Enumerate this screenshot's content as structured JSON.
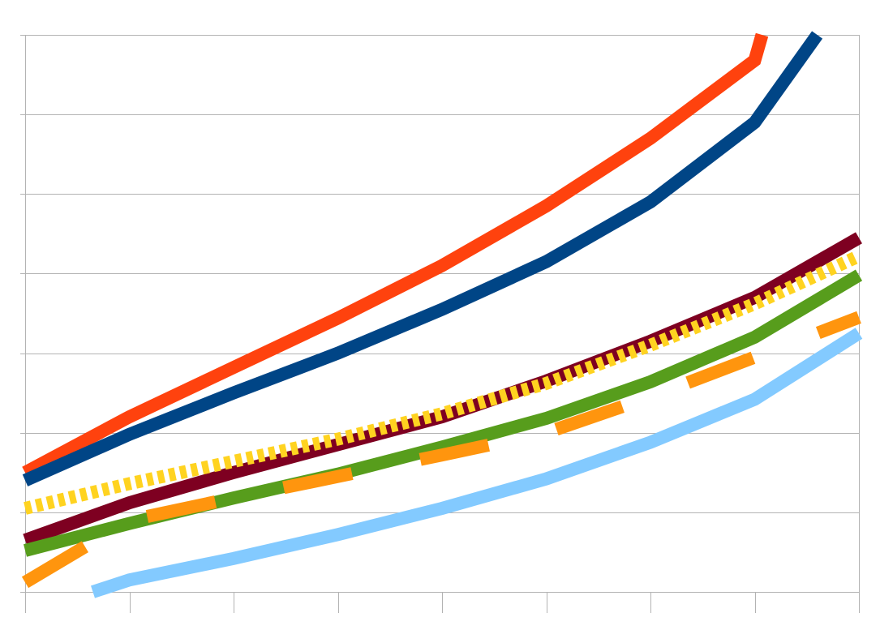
{
  "chart_data": {
    "type": "line",
    "title": "",
    "xlabel": "",
    "ylabel": "",
    "x": [
      0,
      1,
      2,
      3,
      4,
      5,
      6,
      7,
      8
    ],
    "xlim": [
      0,
      8
    ],
    "ylim": [
      0,
      7
    ],
    "grid": true,
    "legend": "none",
    "series": [
      {
        "color": "#ff420e",
        "dash": "solid",
        "values": [
          1.5,
          2.2,
          2.82,
          3.44,
          4.1,
          4.85,
          5.7,
          6.68,
          7.0
        ],
        "x_override": [
          0,
          1,
          2,
          3,
          4,
          5,
          6,
          7,
          7.07
        ]
      },
      {
        "color": "#004586",
        "dash": "solid",
        "values": [
          1.4,
          1.98,
          2.5,
          3.0,
          3.55,
          4.15,
          4.9,
          5.9,
          7.0
        ],
        "x_override": [
          0,
          1,
          2,
          3,
          4,
          5,
          6,
          7,
          7.6
        ]
      },
      {
        "color": "#7e0021",
        "dash": "solid",
        "values": [
          0.65,
          1.12,
          1.5,
          1.85,
          2.2,
          2.65,
          3.15,
          3.7,
          4.45
        ]
      },
      {
        "color": "#ffd320",
        "dash": "dotted",
        "values": [
          1.05,
          1.36,
          1.64,
          1.92,
          2.24,
          2.62,
          3.1,
          3.62,
          4.22
        ]
      },
      {
        "color": "#579d1c",
        "dash": "solid",
        "values": [
          0.52,
          0.86,
          1.18,
          1.48,
          1.82,
          2.18,
          2.64,
          3.2,
          3.98
        ]
      },
      {
        "color": "#ff950e",
        "dash": "dashed",
        "values": [
          0.12,
          0.9,
          1.18,
          1.45,
          1.72,
          2.0,
          2.45,
          2.95,
          3.45
        ]
      },
      {
        "color": "#83caff",
        "dash": "solid",
        "values": [
          0.0,
          0.15,
          0.42,
          0.72,
          1.05,
          1.42,
          1.88,
          2.42,
          3.25
        ],
        "x_override": [
          0.65,
          1,
          2,
          3,
          4,
          5,
          6,
          7,
          8
        ]
      }
    ]
  }
}
